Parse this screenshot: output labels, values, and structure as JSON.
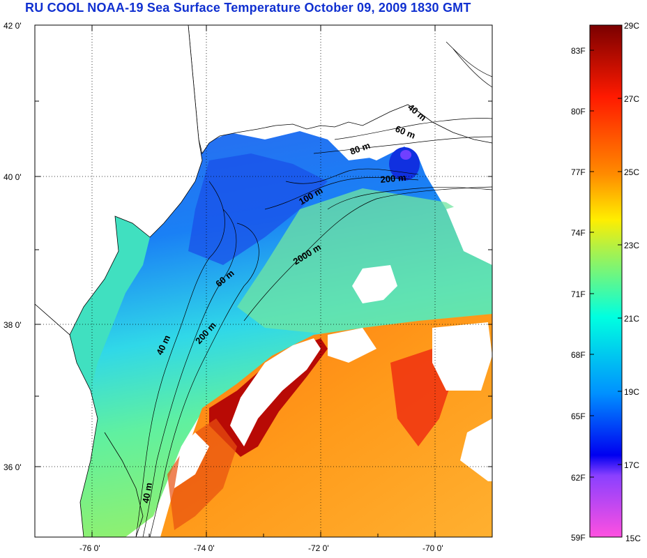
{
  "title": "RU COOL  NOAA-19 Sea Surface Temperature October 09, 2009 1830 GMT",
  "map": {
    "lat_labels": [
      "42 0'",
      "40 0'",
      "38 0'",
      "36 0'"
    ],
    "lon_labels": [
      "-76 0'",
      "-74 0'",
      "-72 0'",
      "-70 0'"
    ],
    "isobath_labels": [
      "40 m",
      "60 m",
      "80 m",
      "200 m",
      "100 m",
      "2000 m",
      "60 m",
      "200 m",
      "40 m",
      "40 m"
    ]
  },
  "colorbar": {
    "fahrenheit_labels": [
      "83F",
      "80F",
      "77F",
      "74F",
      "71F",
      "68F",
      "65F",
      "62F",
      "59F"
    ],
    "celsius_labels": [
      "29C",
      "27C",
      "25C",
      "23C",
      "21C",
      "19C",
      "17C",
      "15C"
    ],
    "colors": {
      "c29": "#7a0000",
      "c27": "#ff1a00",
      "c25": "#ff8a00",
      "c24": "#ffee00",
      "c23": "#b8f040",
      "c21": "#00ffe0",
      "c19": "#0090ff",
      "c17": "#0000f0",
      "c16": "#8a40ff",
      "c15": "#ff50e0"
    }
  }
}
